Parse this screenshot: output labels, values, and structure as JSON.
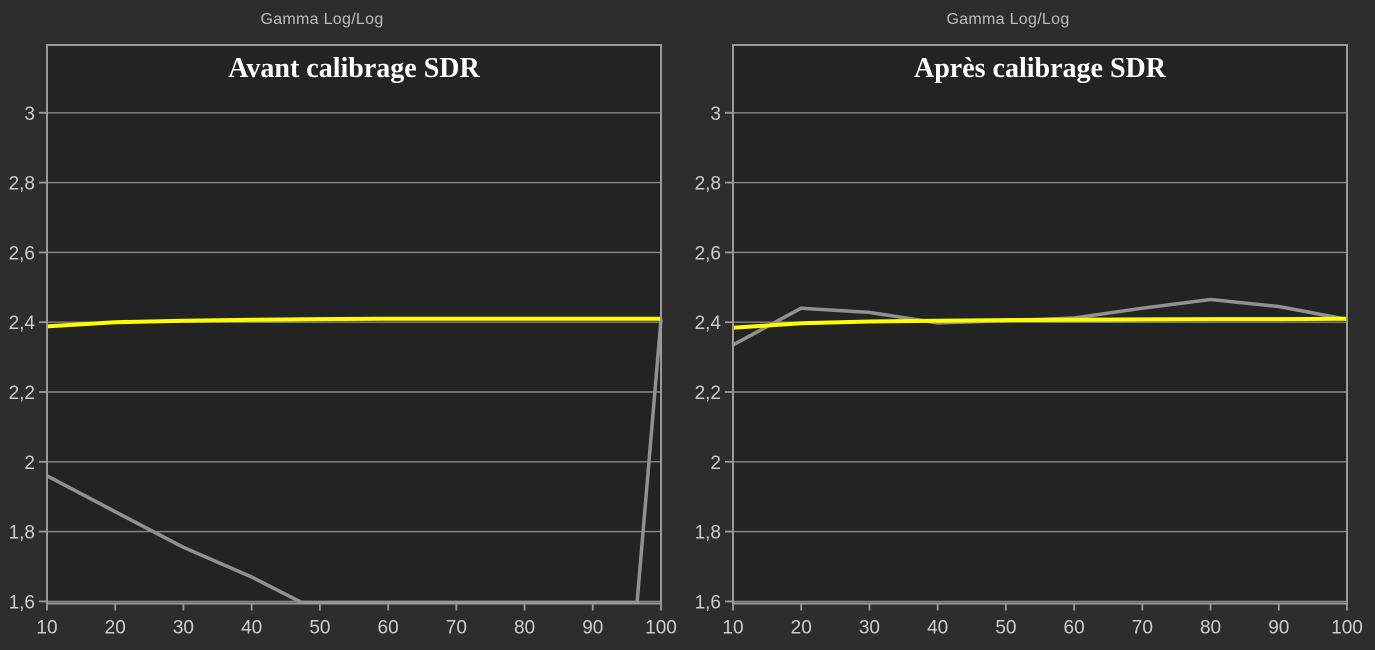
{
  "page": {
    "background": "#2d2d2d"
  },
  "colors": {
    "plot_background": "#232323",
    "grid": "#8a8a8a",
    "border": "#9a9a9a",
    "tick_text": "#cdcdcd",
    "title_text": "#bdbdbd",
    "subtitle_text": "#ffffff",
    "measured_line": "#919191",
    "target_line": "#ffff00"
  },
  "chart_data": [
    {
      "type": "line",
      "title": "Gamma Log/Log",
      "subtitle": "Avant calibrage SDR",
      "xlabel": "",
      "ylabel": "",
      "xlim": [
        10,
        100
      ],
      "ylim": [
        1.59,
        3.2
      ],
      "grid": "horizontal-only",
      "legend_position": "none",
      "x_ticks": {
        "values": [
          10,
          20,
          30,
          40,
          50,
          60,
          70,
          80,
          90,
          100
        ],
        "labels": [
          "10",
          "20",
          "30",
          "40",
          "50",
          "60",
          "70",
          "80",
          "90",
          "100"
        ]
      },
      "y_ticks": {
        "values": [
          3,
          2.8,
          2.6,
          2.4,
          2.2,
          2,
          1.8,
          1.6
        ],
        "labels": [
          "3",
          "2,8",
          "2,6",
          "2,4",
          "2,2",
          "2",
          "1,8",
          "1,6"
        ]
      },
      "series": [
        {
          "name": "gamma-measured",
          "color": "#919191",
          "width": 3.5,
          "note": "drops below the visible scale between x=47 and x=97, hugging the chart bottom, then spikes up to 2.41 at x=100",
          "points": [
            [
              10,
              1.96
            ],
            [
              20,
              1.857
            ],
            [
              30,
              1.755
            ],
            [
              40,
              1.67
            ],
            [
              47.3,
              1.597
            ],
            [
              96.5,
              1.597
            ],
            [
              100,
              2.408
            ]
          ]
        },
        {
          "name": "gamma-target",
          "color": "#ffff00",
          "width": 4,
          "points": [
            [
              10,
              2.388
            ],
            [
              20,
              2.4
            ],
            [
              30,
              2.404
            ],
            [
              40,
              2.407
            ],
            [
              50,
              2.409
            ],
            [
              60,
              2.41
            ],
            [
              70,
              2.41
            ],
            [
              80,
              2.41
            ],
            [
              90,
              2.41
            ],
            [
              100,
              2.41
            ]
          ]
        }
      ]
    },
    {
      "type": "line",
      "title": "Gamma Log/Log",
      "subtitle": "Après calibrage SDR",
      "xlabel": "",
      "ylabel": "",
      "xlim": [
        10,
        100
      ],
      "ylim": [
        1.59,
        3.2
      ],
      "grid": "horizontal-only",
      "legend_position": "none",
      "x_ticks": {
        "values": [
          10,
          20,
          30,
          40,
          50,
          60,
          70,
          80,
          90,
          100
        ],
        "labels": [
          "10",
          "20",
          "30",
          "40",
          "50",
          "60",
          "70",
          "80",
          "90",
          "100"
        ]
      },
      "y_ticks": {
        "values": [
          3,
          2.8,
          2.6,
          2.4,
          2.2,
          2,
          1.8,
          1.6
        ],
        "labels": [
          "3",
          "2,8",
          "2,6",
          "2,4",
          "2,2",
          "2",
          "1,8",
          "1,6"
        ]
      },
      "series": [
        {
          "name": "gamma-measured",
          "color": "#919191",
          "width": 3.5,
          "points": [
            [
              10,
              2.335
            ],
            [
              20,
              2.44
            ],
            [
              30,
              2.428
            ],
            [
              40,
              2.398
            ],
            [
              50,
              2.404
            ],
            [
              60,
              2.412
            ],
            [
              70,
              2.44
            ],
            [
              80,
              2.465
            ],
            [
              90,
              2.445
            ],
            [
              100,
              2.408
            ]
          ]
        },
        {
          "name": "gamma-target",
          "color": "#ffff00",
          "width": 4,
          "points": [
            [
              10,
              2.384
            ],
            [
              20,
              2.397
            ],
            [
              30,
              2.402
            ],
            [
              40,
              2.404
            ],
            [
              50,
              2.406
            ],
            [
              60,
              2.407
            ],
            [
              70,
              2.408
            ],
            [
              80,
              2.409
            ],
            [
              90,
              2.409
            ],
            [
              100,
              2.41
            ]
          ]
        }
      ]
    }
  ]
}
